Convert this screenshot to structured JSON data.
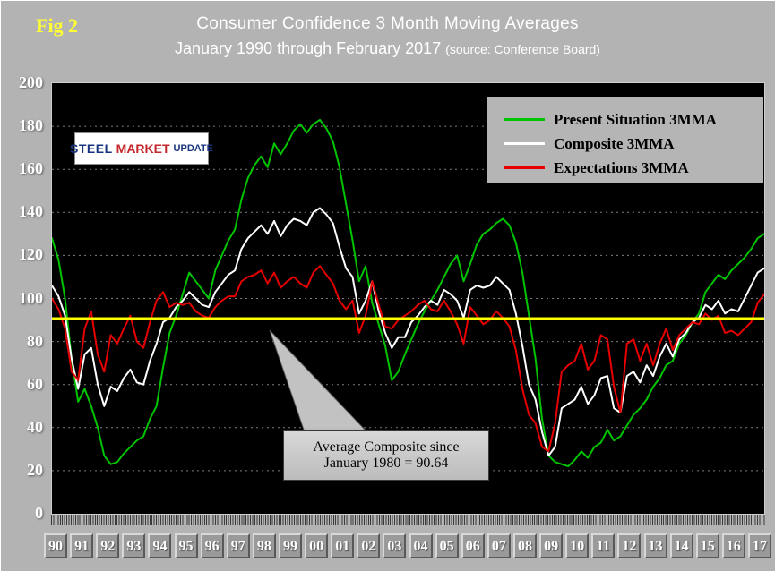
{
  "figure_label": "Fig 2",
  "title": {
    "line1": "Consumer Confidence 3 Month Moving Averages",
    "line2_main": "January 1990 through February 2017",
    "line2_source": "(source: Conference Board)"
  },
  "logo": {
    "word1": "STEEL",
    "word2": "MARKET",
    "word3": "UPDATE"
  },
  "legend": [
    {
      "label": "Present Situation 3MMA",
      "color": "#00c400"
    },
    {
      "label": "Composite 3MMA",
      "color": "#ffffff"
    },
    {
      "label": "Expectations 3MMA",
      "color": "#e60000"
    }
  ],
  "callout": {
    "line1": "Average Composite since",
    "line2": "January 1980 = 90.64"
  },
  "colors": {
    "page_background": "#b3b3b3",
    "plot_background": "#000000",
    "grid": "#7d7d7d",
    "reference_line": "#ffff00",
    "title_text": "#ffffff",
    "figure_label_text": "#ffff33",
    "axis_text": "#ffffff"
  },
  "chart_data": {
    "type": "line",
    "title": "Consumer Confidence 3 Month Moving Averages",
    "subtitle": "January 1990 through February 2017 (source: Conference Board)",
    "x_start": "1990-01",
    "x_end": "2017-02",
    "x_interval_months": 3,
    "ylim": [
      0,
      200
    ],
    "y_ticks": [
      0,
      20,
      40,
      60,
      80,
      100,
      120,
      140,
      160,
      180,
      200
    ],
    "x_tick_labels": [
      "90",
      "91",
      "92",
      "93",
      "94",
      "95",
      "96",
      "97",
      "98",
      "99",
      "00",
      "01",
      "02",
      "03",
      "04",
      "05",
      "06",
      "07",
      "08",
      "09",
      "10",
      "11",
      "12",
      "13",
      "14",
      "15",
      "16",
      "17"
    ],
    "grid": "horizontal-dashed",
    "legend_position": "top-right",
    "reference_line": {
      "value": 90.64,
      "color": "#ffff00",
      "label": "Average Composite since January 1980 = 90.64"
    },
    "series": [
      {
        "name": "Present Situation 3MMA",
        "color": "#00c400",
        "values": [
          128,
          118,
          100,
          72,
          52,
          58,
          50,
          40,
          27,
          23,
          24,
          28,
          31,
          34,
          36,
          44,
          50,
          68,
          84,
          92,
          102,
          112,
          108,
          104,
          100,
          113,
          120,
          127,
          132,
          146,
          156,
          162,
          166,
          161,
          172,
          167,
          172,
          178,
          181,
          177,
          181,
          183,
          179,
          173,
          161,
          144,
          127,
          108,
          115,
          98,
          88,
          78,
          62,
          66,
          74,
          81,
          88,
          94,
          99,
          104,
          110,
          116,
          120,
          108,
          116,
          125,
          130,
          132,
          135,
          137,
          134,
          126,
          112,
          92,
          72,
          44,
          27,
          24,
          23,
          22,
          25,
          29,
          26,
          31,
          33,
          39,
          34,
          36,
          41,
          46,
          49,
          53,
          59,
          63,
          69,
          71,
          79,
          83,
          89,
          93,
          103,
          107,
          111,
          109,
          113,
          116,
          119,
          123,
          128,
          130
        ]
      },
      {
        "name": "Composite 3MMA",
        "color": "#ffffff",
        "values": [
          106,
          101,
          92,
          72,
          58,
          74,
          77,
          60,
          50,
          59,
          57,
          63,
          67,
          61,
          60,
          71,
          79,
          89,
          91,
          96,
          99,
          103,
          100,
          97,
          96,
          103,
          107,
          111,
          113,
          123,
          128,
          131,
          134,
          130,
          136,
          129,
          134,
          137,
          136,
          134,
          140,
          142,
          139,
          135,
          124,
          114,
          110,
          93,
          99,
          108,
          94,
          84,
          77,
          82,
          82,
          89,
          92,
          96,
          99,
          97,
          104,
          102,
          99,
          91,
          104,
          106,
          105,
          106,
          110,
          107,
          104,
          93,
          78,
          60,
          53,
          38,
          27,
          31,
          49,
          51,
          53,
          59,
          51,
          55,
          63,
          64,
          49,
          47,
          64,
          66,
          61,
          69,
          64,
          73,
          79,
          73,
          81,
          84,
          89,
          91,
          97,
          95,
          99,
          93,
          95,
          94,
          100,
          106,
          112,
          114
        ]
      },
      {
        "name": "Expectations 3MMA",
        "color": "#e60000",
        "values": [
          100,
          95,
          86,
          66,
          62,
          86,
          94,
          74,
          66,
          83,
          79,
          86,
          92,
          80,
          77,
          89,
          99,
          103,
          96,
          98,
          97,
          98,
          94,
          92,
          91,
          96,
          99,
          101,
          101,
          108,
          110,
          111,
          113,
          107,
          112,
          105,
          108,
          110,
          107,
          105,
          112,
          115,
          111,
          107,
          99,
          95,
          99,
          84,
          92,
          108,
          97,
          87,
          86,
          90,
          92,
          94,
          97,
          99,
          95,
          94,
          99,
          94,
          88,
          79,
          96,
          92,
          88,
          90,
          94,
          91,
          87,
          76,
          58,
          46,
          42,
          31,
          29,
          42,
          66,
          69,
          71,
          79,
          67,
          71,
          83,
          81,
          59,
          47,
          79,
          81,
          71,
          79,
          69,
          79,
          86,
          76,
          83,
          86,
          89,
          88,
          93,
          90,
          92,
          84,
          85,
          83,
          86,
          89,
          98,
          102
        ]
      }
    ]
  }
}
